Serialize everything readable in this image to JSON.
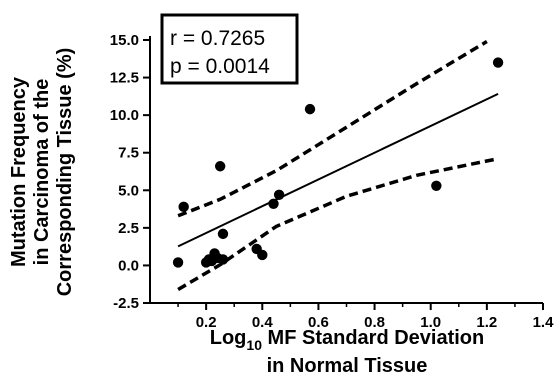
{
  "chart_data": {
    "type": "scatter",
    "title": "",
    "xlabel_parts": [
      "Log",
      "10",
      " MF Standard Deviation"
    ],
    "xlabel_line2": "in Normal Tissue",
    "ylabel_lines": [
      "Mutation Frequency",
      "in Carcinoma of the",
      "Corresponding Tissue (%)"
    ],
    "xlim": [
      0.0,
      1.4
    ],
    "ylim": [
      -2.5,
      15.0
    ],
    "x_ticks": [
      "0.2",
      "0.4",
      "0.6",
      "0.8",
      "1.0",
      "1.2",
      "1.4"
    ],
    "y_ticks": [
      "-2.5",
      "0.0",
      "2.5",
      "5.0",
      "7.5",
      "10.0",
      "12.5",
      "15.0"
    ],
    "grid": false,
    "annotation": {
      "r": "r = 0.7265",
      "p": "p = 0.0014"
    },
    "points": [
      {
        "x": 0.1,
        "y": 0.2
      },
      {
        "x": 0.12,
        "y": 3.9
      },
      {
        "x": 0.2,
        "y": 0.2
      },
      {
        "x": 0.21,
        "y": 0.4
      },
      {
        "x": 0.22,
        "y": 0.3
      },
      {
        "x": 0.23,
        "y": 0.8
      },
      {
        "x": 0.24,
        "y": 0.5
      },
      {
        "x": 0.25,
        "y": 6.6
      },
      {
        "x": 0.26,
        "y": 0.4
      },
      {
        "x": 0.26,
        "y": 2.1
      },
      {
        "x": 0.38,
        "y": 1.1
      },
      {
        "x": 0.4,
        "y": 0.7
      },
      {
        "x": 0.44,
        "y": 4.1
      },
      {
        "x": 0.46,
        "y": 4.7
      },
      {
        "x": 0.57,
        "y": 10.4
      },
      {
        "x": 1.02,
        "y": 5.3
      },
      {
        "x": 1.24,
        "y": 13.5
      }
    ],
    "regression": {
      "x_start": 0.1,
      "x_end": 1.24,
      "slope": 8.9,
      "intercept": 0.38
    },
    "confidence_upper": [
      [
        0.1,
        3.3
      ],
      [
        0.25,
        4.4
      ],
      [
        0.45,
        6.3
      ],
      [
        0.7,
        9.2
      ],
      [
        0.95,
        12.1
      ],
      [
        1.2,
        14.9
      ]
    ],
    "confidence_lower": [
      [
        0.1,
        -1.6
      ],
      [
        0.25,
        0.05
      ],
      [
        0.45,
        2.6
      ],
      [
        0.7,
        4.6
      ],
      [
        0.95,
        6.0
      ],
      [
        1.24,
        7.1
      ]
    ],
    "colors": {
      "points": "#000000",
      "lines": "#000000",
      "background": "#ffffff"
    }
  }
}
